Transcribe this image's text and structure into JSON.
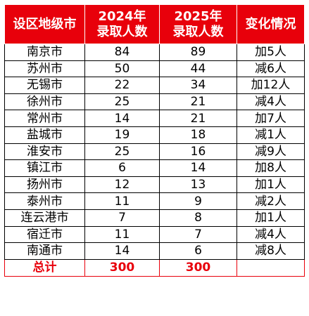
{
  "header": {
    "city": "设区地级市",
    "y2024_line1": "2024年",
    "y2024_line2": "录取人数",
    "y2025_line1": "2025年",
    "y2025_line2": "录取人数",
    "change": "变化情况"
  },
  "rows": [
    {
      "city": "南京市",
      "y2024": "84",
      "y2025": "89",
      "change": "加5人"
    },
    {
      "city": "苏州市",
      "y2024": "50",
      "y2025": "44",
      "change": "减6人"
    },
    {
      "city": "无锡市",
      "y2024": "22",
      "y2025": "34",
      "change": "加12人"
    },
    {
      "city": "徐州市",
      "y2024": "25",
      "y2025": "21",
      "change": "减4人"
    },
    {
      "city": "常州市",
      "y2024": "14",
      "y2025": "21",
      "change": "加7人"
    },
    {
      "city": "盐城市",
      "y2024": "19",
      "y2025": "18",
      "change": "减1人"
    },
    {
      "city": "淮安市",
      "y2024": "25",
      "y2025": "16",
      "change": "减9人"
    },
    {
      "city": "镇江市",
      "y2024": "6",
      "y2025": "14",
      "change": "加8人"
    },
    {
      "city": "扬州市",
      "y2024": "12",
      "y2025": "13",
      "change": "加1人"
    },
    {
      "city": "泰州市",
      "y2024": "11",
      "y2025": "9",
      "change": "减2人"
    },
    {
      "city": "连云港市",
      "y2024": "7",
      "y2025": "8",
      "change": "加1人"
    },
    {
      "city": "宿迁市",
      "y2024": "11",
      "y2025": "7",
      "change": "减4人"
    },
    {
      "city": "南通市",
      "y2024": "14",
      "y2025": "6",
      "change": "减8人"
    }
  ],
  "total": {
    "label": "总计",
    "y2024": "300",
    "y2025": "300",
    "change": ""
  },
  "colors": {
    "header_bg": "#e8000b",
    "header_text": "#ffffff",
    "total_text": "#e8000b",
    "body_text": "#000000"
  }
}
